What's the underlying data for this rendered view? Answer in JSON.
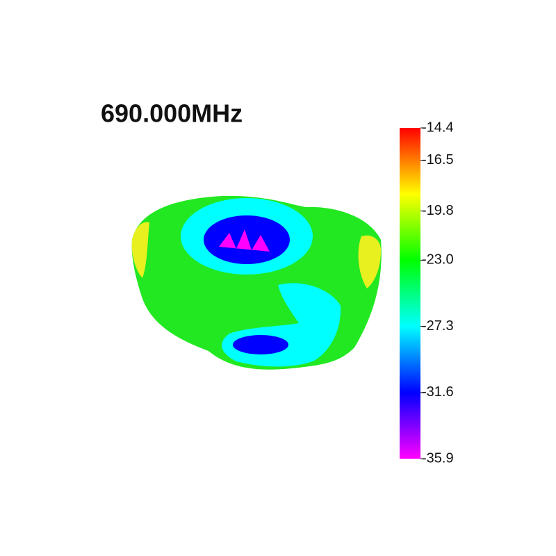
{
  "chart_data": {
    "type": "surface",
    "title": "690.000MHz",
    "colormap": [
      "#ff0000",
      "#ffff00",
      "#00ff00",
      "#00ffff",
      "#0000ff",
      "#ff00ff"
    ],
    "clim": [
      -35.9,
      -14.4
    ],
    "cticks": [
      -14.4,
      -16.5,
      -19.8,
      {
        "value": -23,
        "label": "-23.0"
      },
      -27.3,
      -31.6,
      -35.9
    ]
  }
}
